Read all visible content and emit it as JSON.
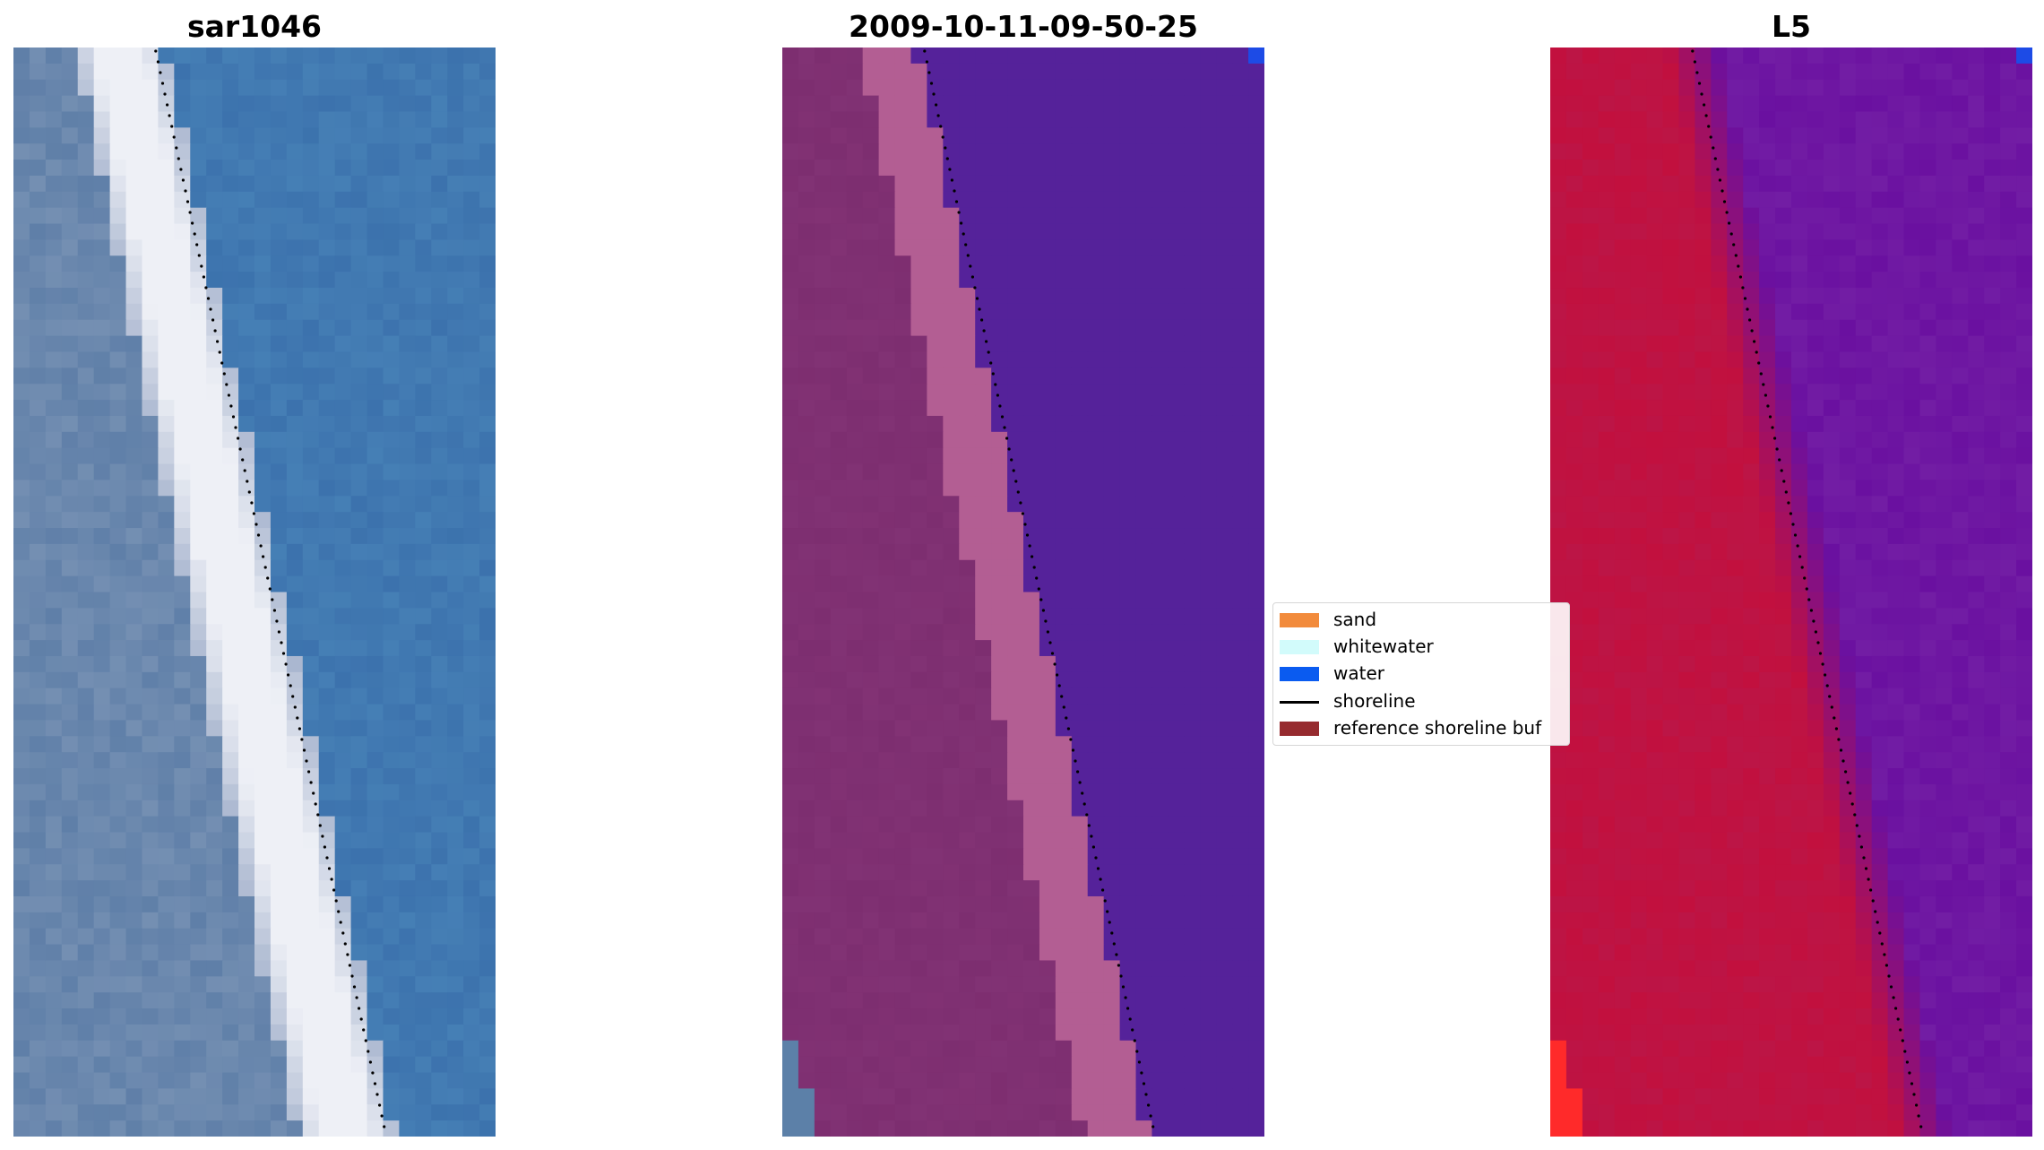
{
  "panels": [
    {
      "title": "sar1046"
    },
    {
      "title": "2009-10-11-09-50-25"
    },
    {
      "title": "L5"
    }
  ],
  "legend": {
    "items": [
      {
        "label": "sand",
        "color": "#f28b3c",
        "kind": "patch"
      },
      {
        "label": "whitewater",
        "color": "#d2fbfb",
        "kind": "patch"
      },
      {
        "label": "water",
        "color": "#0a5bf0",
        "kind": "patch"
      },
      {
        "label": "shoreline",
        "color": "#000000",
        "kind": "line"
      },
      {
        "label": "reference shoreline buf",
        "color": "#962b2f",
        "kind": "patch"
      }
    ]
  },
  "colors": {
    "rgb_water": "#3c72ad",
    "rgb_beach": "#5f7fa8",
    "rgb_whitewater": "#eef0f6",
    "class_land": "#7d2e70",
    "class_band": "#b35e93",
    "class_water": "#55229a",
    "class_blue_pixel": "#1d4be6",
    "class_rgb_corner": "#5c80a8",
    "mndwi_land": "#c2103e",
    "mndwi_water": "#6a10a0",
    "mndwi_hot": "#ff2a2a"
  }
}
